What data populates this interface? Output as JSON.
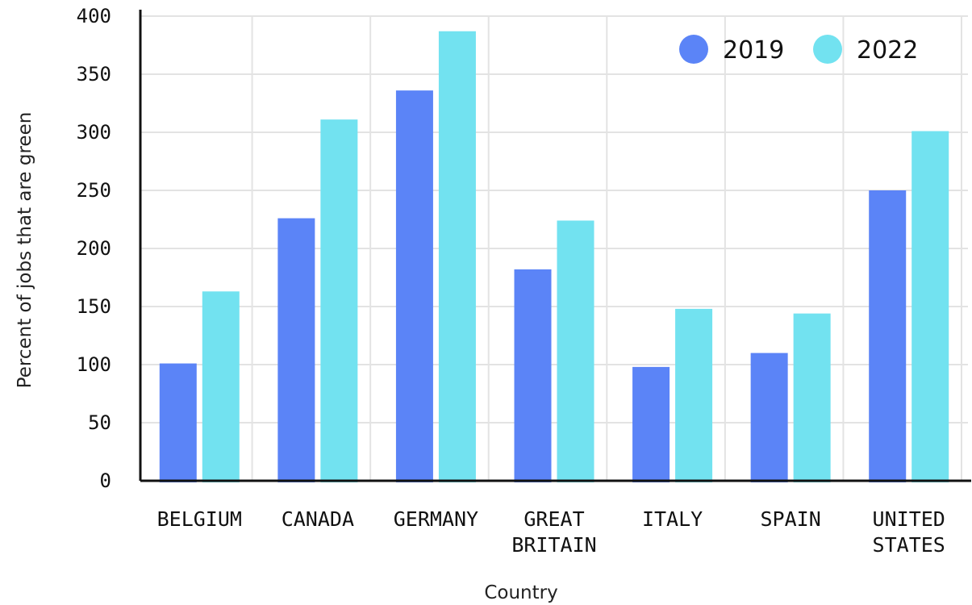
{
  "chart_data": {
    "type": "bar",
    "title": "",
    "xlabel": "Country",
    "ylabel": "Percent of jobs that are green",
    "ylim": [
      0,
      400
    ],
    "yticks": [
      0,
      50,
      100,
      150,
      200,
      250,
      300,
      350,
      400
    ],
    "grid": true,
    "legend_position": "top-right",
    "categories": [
      [
        "BELGIUM"
      ],
      [
        "CANADA"
      ],
      [
        "GERMANY"
      ],
      [
        "GREAT",
        "BRITAIN"
      ],
      [
        "ITALY"
      ],
      [
        "SPAIN"
      ],
      [
        "UNITED",
        "STATES"
      ]
    ],
    "series": [
      {
        "name": "2019",
        "color": "#5b84f7",
        "values": [
          101,
          226,
          336,
          182,
          98,
          110,
          250
        ]
      },
      {
        "name": "2022",
        "color": "#72e2f0",
        "values": [
          163,
          311,
          387,
          224,
          148,
          144,
          301
        ]
      }
    ],
    "colors": {
      "grid": "#e3e3e3",
      "axis": "#111111"
    }
  }
}
